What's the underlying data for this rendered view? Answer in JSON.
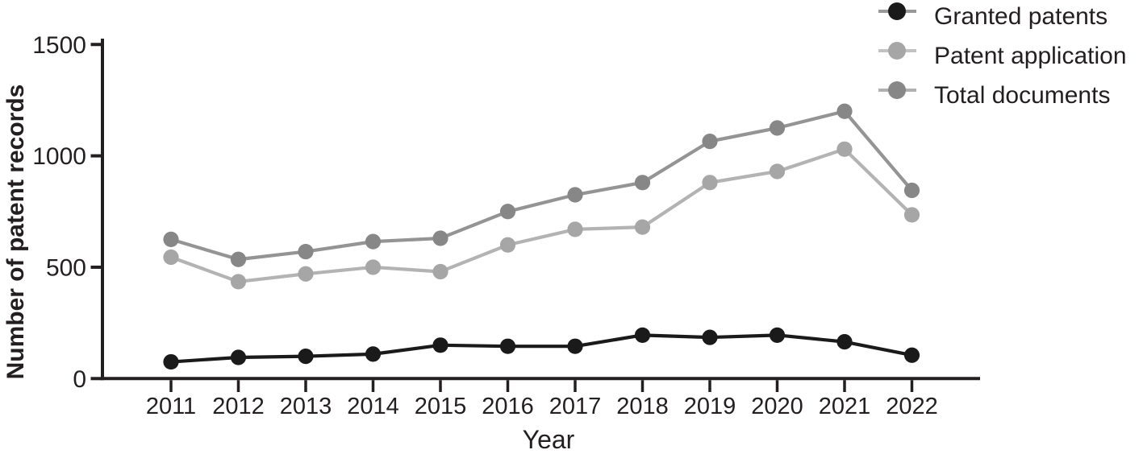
{
  "chart_data": {
    "type": "line",
    "title": "",
    "xlabel": "Year",
    "ylabel": "Number of patent records",
    "categories": [
      "2011",
      "2012",
      "2013",
      "2014",
      "2015",
      "2016",
      "2017",
      "2018",
      "2019",
      "2020",
      "2021",
      "2022"
    ],
    "yticks": [
      0,
      500,
      1000,
      1500
    ],
    "ylim": [
      0,
      1500
    ],
    "grid": false,
    "legend_position": "top-right",
    "series": [
      {
        "name": "Granted patents",
        "values": [
          75,
          95,
          100,
          110,
          150,
          145,
          145,
          195,
          185,
          195,
          165,
          105
        ],
        "dot_color": "#1a1a1a",
        "line_color": "#1a1a1a",
        "legend_line_color": "#999999"
      },
      {
        "name": "Patent application",
        "values": [
          545,
          435,
          470,
          500,
          480,
          600,
          670,
          680,
          880,
          930,
          1030,
          735
        ],
        "dot_color": "#a6a6a6",
        "line_color": "#b3b3b3",
        "legend_line_color": "#c2c2c2"
      },
      {
        "name": "Total documents",
        "values": [
          625,
          535,
          570,
          615,
          630,
          750,
          825,
          880,
          1065,
          1125,
          1200,
          845
        ],
        "dot_color": "#878787",
        "line_color": "#949494",
        "legend_line_color": "#b0b0b0"
      }
    ]
  },
  "colors": {
    "text": "#231f20",
    "axis": "#231f20",
    "background": "#ffffff"
  }
}
